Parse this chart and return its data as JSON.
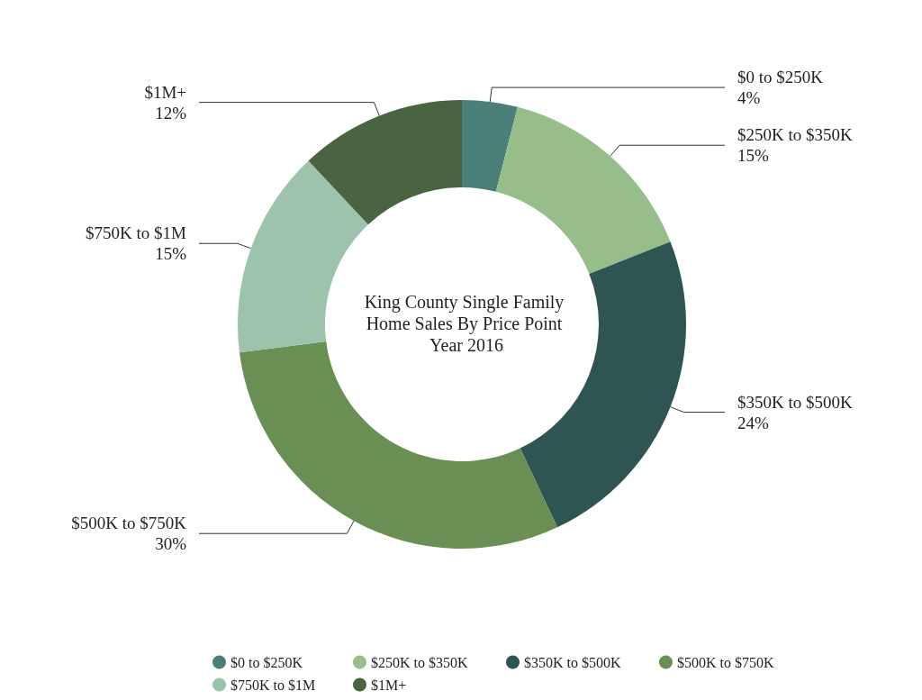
{
  "chart_data": {
    "type": "donut",
    "title": "King County Single Family Home Sales By Price Point Year 2016",
    "categories": [
      "$0 to $250K",
      "$250K to $350K",
      "$350K to $500K",
      "$500K to $750K",
      "$750K to $1M",
      "$1M+"
    ],
    "values": [
      4,
      15,
      24,
      30,
      15,
      12
    ],
    "value_labels": [
      "4%",
      "15%",
      "24%",
      "30%",
      "15%",
      "12%"
    ],
    "colors": [
      "#4a8078",
      "#97bd8a",
      "#2e5552",
      "#6a8f55",
      "#9dc3ad",
      "#4a6341"
    ],
    "legend": "bottom"
  }
}
